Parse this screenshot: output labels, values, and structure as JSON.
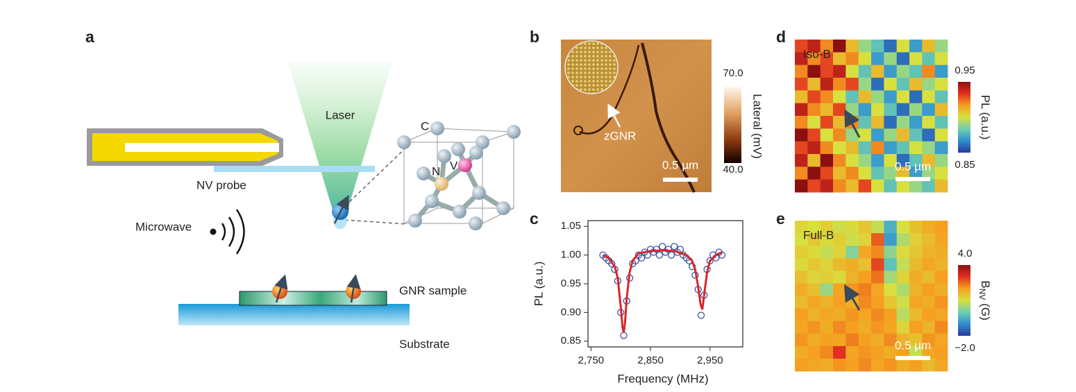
{
  "panel_labels": [
    "a",
    "b",
    "c",
    "d",
    "e"
  ],
  "diagram": {
    "laser": "Laser",
    "nv_probe": "NV probe",
    "microwave": "Microwave",
    "gnr_sample": "GNR sample",
    "substrate": "Substrate",
    "atoms": [
      "C",
      "N",
      "V"
    ]
  },
  "afm": {
    "annotation": "zGNR",
    "scale_bar": "0.5 µm",
    "colorbar": {
      "label": "Lateral (mV)",
      "max": {
        "value": 70,
        "label": "70.0"
      },
      "min": {
        "value": 40,
        "label": "40.0"
      }
    }
  },
  "chart_data": {
    "type": "scatter",
    "x_label": "Frequency (MHz)",
    "y_label": "PL (a.u.)",
    "xlim": [
      2745,
      3005
    ],
    "ylim": [
      0.84,
      1.06
    ],
    "xticks": [
      {
        "value": 2750,
        "label": "2,750"
      },
      {
        "value": 2850,
        "label": "2,850"
      },
      {
        "value": 2950,
        "label": "2,950"
      }
    ],
    "yticks": [
      0.85,
      {
        "value": 0.9,
        "label": "0.90"
      },
      0.95,
      {
        "value": 1,
        "label": "1.00"
      },
      1.05
    ],
    "series": [
      {
        "type": "scatter",
        "color": "#3a4fa0",
        "x": [
          2770,
          2775,
          2780,
          2785,
          2790,
          2795,
          2800,
          2805,
          2810,
          2815,
          2820,
          2825,
          2830,
          2835,
          2840,
          2845,
          2850,
          2855,
          2860,
          2865,
          2870,
          2875,
          2880,
          2885,
          2890,
          2895,
          2900,
          2905,
          2910,
          2915,
          2920,
          2925,
          2930,
          2935,
          2940,
          2945,
          2950,
          2955,
          2960,
          2965,
          2970
        ],
        "values": [
          1.0,
          0.995,
          0.99,
          0.985,
          0.975,
          0.955,
          0.9,
          0.86,
          0.92,
          0.96,
          0.985,
          0.99,
          1.0,
          0.995,
          1.005,
          1.0,
          1.01,
          1.005,
          1.01,
          1.0,
          1.015,
          1.005,
          1.01,
          1.0,
          1.015,
          1.005,
          1.01,
          1.0,
          0.995,
          0.99,
          0.98,
          0.965,
          0.94,
          0.895,
          0.93,
          0.975,
          0.99,
          1.0,
          0.995,
          1.005,
          1.0
        ]
      },
      {
        "type": "line",
        "color": "#d62728",
        "x": [
          2770,
          2780,
          2790,
          2795,
          2800,
          2803,
          2805,
          2807,
          2810,
          2815,
          2820,
          2830,
          2850,
          2870,
          2890,
          2910,
          2920,
          2925,
          2930,
          2934,
          2937,
          2940,
          2945,
          2950,
          2960,
          2970
        ],
        "values": [
          1.0,
          0.995,
          0.98,
          0.96,
          0.91,
          0.875,
          0.865,
          0.88,
          0.925,
          0.97,
          0.99,
          1.003,
          1.007,
          1.008,
          1.007,
          1.0,
          0.99,
          0.975,
          0.945,
          0.915,
          0.905,
          0.93,
          0.97,
          0.99,
          1.0,
          1.005
        ]
      }
    ]
  },
  "colormap": [
    "#2b3a99",
    "#2f8fd0",
    "#6fcfb0",
    "#d8e040",
    "#f5a020",
    "#e03020",
    "#8b1010"
  ],
  "maps": [
    {
      "title": "Iso-B",
      "scale_bar": "0.5 µm",
      "colorbar": {
        "label": "PL (a.u.)",
        "max": 0.95,
        "min": 0.85
      },
      "values": [
        [
          0.93,
          0.94,
          0.92,
          0.95,
          0.91,
          0.89,
          0.88,
          0.86,
          0.9,
          0.87,
          0.91,
          0.89
        ],
        [
          0.94,
          0.92,
          0.93,
          0.91,
          0.92,
          0.9,
          0.87,
          0.89,
          0.86,
          0.9,
          0.88,
          0.9
        ],
        [
          0.92,
          0.95,
          0.93,
          0.94,
          0.9,
          0.88,
          0.91,
          0.87,
          0.89,
          0.88,
          0.92,
          0.87
        ],
        [
          0.93,
          0.91,
          0.94,
          0.92,
          0.93,
          0.89,
          0.86,
          0.9,
          0.88,
          0.91,
          0.89,
          0.9
        ],
        [
          0.91,
          0.93,
          0.92,
          0.9,
          0.88,
          0.91,
          0.89,
          0.87,
          0.9,
          0.86,
          0.9,
          0.88
        ],
        [
          0.94,
          0.92,
          0.91,
          0.93,
          0.89,
          0.87,
          0.9,
          0.88,
          0.86,
          0.89,
          0.87,
          0.91
        ],
        [
          0.92,
          0.9,
          0.93,
          0.91,
          0.92,
          0.88,
          0.91,
          0.86,
          0.89,
          0.87,
          0.9,
          0.88
        ],
        [
          0.95,
          0.93,
          0.9,
          0.92,
          0.89,
          0.9,
          0.87,
          0.89,
          0.91,
          0.88,
          0.86,
          0.9
        ],
        [
          0.93,
          0.94,
          0.92,
          0.9,
          0.91,
          0.88,
          0.92,
          0.87,
          0.88,
          0.9,
          0.89,
          0.87
        ],
        [
          0.94,
          0.91,
          0.95,
          0.92,
          0.9,
          0.89,
          0.87,
          0.9,
          0.86,
          0.88,
          0.91,
          0.89
        ],
        [
          0.92,
          0.95,
          0.93,
          0.91,
          0.92,
          0.9,
          0.88,
          0.89,
          0.91,
          0.87,
          0.89,
          0.9
        ],
        [
          0.95,
          0.93,
          0.94,
          0.92,
          0.91,
          0.93,
          0.9,
          0.88,
          0.9,
          0.89,
          0.88,
          0.91
        ]
      ]
    },
    {
      "title": "Full-B",
      "scale_bar": "0.5 µm",
      "colorbar": {
        "label": "B",
        "label_subscript": "NV",
        "label_unit": "(G)",
        "max": {
          "value": 4,
          "label": "4.0"
        },
        "min": {
          "value": -2,
          "label": "−2.0"
        }
      },
      "values": [
        [
          1.2,
          1.0,
          1.3,
          0.9,
          1.1,
          1.4,
          0.8,
          -0.5,
          1.0,
          1.5,
          1.8,
          2.0
        ],
        [
          1.0,
          1.4,
          1.1,
          1.3,
          0.9,
          1.2,
          2.6,
          -0.8,
          0.6,
          1.3,
          1.6,
          1.9
        ],
        [
          1.3,
          1.1,
          0.8,
          1.2,
          0.2,
          1.9,
          2.2,
          0.3,
          1.1,
          1.4,
          1.7,
          1.8
        ],
        [
          1.1,
          1.4,
          1.2,
          1.6,
          1.8,
          1.5,
          2.8,
          -0.2,
          0.8,
          1.6,
          1.9,
          1.7
        ],
        [
          1.5,
          1.2,
          1.3,
          1.1,
          1.7,
          2.0,
          2.4,
          0.5,
          1.2,
          1.8,
          1.6,
          2.0
        ],
        [
          1.8,
          1.5,
          0.4,
          1.9,
          2.1,
          2.3,
          1.9,
          1.0,
          0.6,
          1.7,
          2.0,
          1.8
        ],
        [
          1.6,
          1.9,
          1.7,
          2.0,
          1.8,
          2.2,
          2.0,
          1.4,
          0.9,
          1.9,
          1.8,
          2.1
        ],
        [
          2.0,
          1.7,
          1.9,
          1.8,
          2.1,
          1.9,
          2.2,
          2.0,
          0.7,
          1.6,
          2.0,
          1.9
        ],
        [
          1.9,
          2.1,
          1.8,
          2.2,
          2.0,
          1.8,
          2.1,
          1.9,
          1.2,
          2.0,
          1.7,
          2.2
        ],
        [
          2.1,
          1.8,
          2.0,
          1.9,
          2.3,
          2.0,
          1.8,
          2.2,
          1.7,
          1.5,
          2.1,
          1.9
        ],
        [
          1.8,
          2.0,
          2.2,
          3.0,
          1.9,
          2.1,
          2.0,
          1.8,
          2.0,
          0.8,
          1.9,
          2.0
        ],
        [
          2.0,
          1.9,
          1.8,
          2.1,
          2.0,
          2.2,
          1.9,
          2.1,
          1.8,
          2.0,
          1.6,
          1.9
        ]
      ]
    }
  ]
}
